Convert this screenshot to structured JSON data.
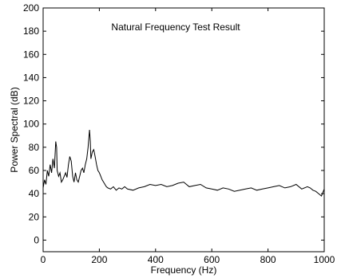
{
  "chart_data": {
    "type": "line",
    "title": "Natural Frequency Test Result",
    "xlabel": "Frequency (Hz)",
    "ylabel": "Power Spectral (dB)",
    "xlim": [
      0,
      1000
    ],
    "ylim": [
      -10,
      200
    ],
    "xticks": [
      "0",
      "200",
      "400",
      "600",
      "800",
      "1000"
    ],
    "yticks": [
      "0",
      "20",
      "40",
      "60",
      "80",
      "100",
      "120",
      "140",
      "160",
      "180",
      "200"
    ],
    "grid": false,
    "legend": "none",
    "line_color": "#000000",
    "series": [
      {
        "x": [
          0,
          5,
          10,
          15,
          20,
          25,
          30,
          35,
          40,
          45,
          48,
          50,
          55,
          60,
          65,
          70,
          75,
          80,
          85,
          90,
          95,
          100,
          105,
          110,
          115,
          120,
          125,
          130,
          135,
          140,
          145,
          150,
          155,
          160,
          165,
          168,
          170,
          175,
          180,
          185,
          190,
          195,
          200,
          205,
          210,
          215,
          220,
          225,
          230,
          240,
          250,
          260,
          270,
          280,
          290,
          300,
          320,
          340,
          360,
          380,
          400,
          420,
          440,
          460,
          480,
          500,
          520,
          540,
          560,
          580,
          600,
          620,
          640,
          660,
          680,
          700,
          720,
          740,
          760,
          780,
          800,
          820,
          840,
          860,
          880,
          900,
          920,
          940,
          950,
          960,
          970,
          980,
          990,
          1000
        ],
        "y": [
          45,
          52,
          48,
          60,
          55,
          65,
          58,
          70,
          62,
          85,
          80,
          60,
          55,
          58,
          50,
          52,
          55,
          58,
          54,
          65,
          72,
          68,
          55,
          50,
          58,
          52,
          50,
          55,
          60,
          62,
          58,
          65,
          70,
          80,
          95,
          85,
          70,
          76,
          78,
          72,
          65,
          60,
          58,
          55,
          52,
          50,
          48,
          46,
          45,
          44,
          46,
          43,
          45,
          44,
          46,
          44,
          43,
          45,
          46,
          48,
          47,
          48,
          46,
          47,
          49,
          50,
          46,
          47,
          48,
          45,
          44,
          43,
          45,
          44,
          42,
          43,
          44,
          45,
          43,
          44,
          45,
          46,
          47,
          45,
          46,
          48,
          44,
          46,
          45,
          43,
          42,
          40,
          38,
          44
        ]
      }
    ]
  }
}
